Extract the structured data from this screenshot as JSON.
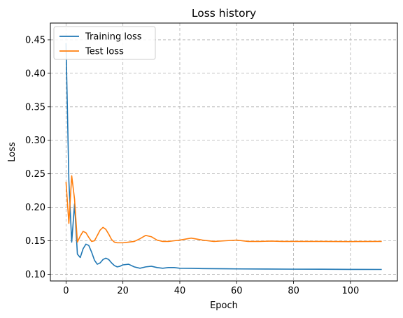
{
  "chart_data": {
    "type": "line",
    "title": "Loss history",
    "xlabel": "Epoch",
    "ylabel": "Loss",
    "xlim": [
      -5.5,
      116.5
    ],
    "ylim": [
      0.09,
      0.475
    ],
    "xticks": [
      0,
      20,
      40,
      60,
      80,
      100
    ],
    "yticks": [
      0.1,
      0.15,
      0.2,
      0.25,
      0.3,
      0.35,
      0.4,
      0.45
    ],
    "grid": true,
    "legend_position": "top-left",
    "series": [
      {
        "name": "Training loss",
        "color": "#1f77b4",
        "x": [
          0,
          1,
          2,
          3,
          4,
          5,
          6,
          7,
          8,
          9,
          10,
          11,
          12,
          13,
          14,
          15,
          16,
          17,
          18,
          19,
          20,
          22,
          24,
          26,
          28,
          30,
          32,
          34,
          36,
          38,
          40,
          44,
          48,
          52,
          56,
          60,
          70,
          80,
          90,
          100,
          111
        ],
        "y": [
          0.445,
          0.24,
          0.148,
          0.205,
          0.13,
          0.125,
          0.138,
          0.145,
          0.143,
          0.133,
          0.121,
          0.115,
          0.117,
          0.122,
          0.124,
          0.122,
          0.117,
          0.113,
          0.111,
          0.112,
          0.114,
          0.115,
          0.111,
          0.109,
          0.111,
          0.112,
          0.11,
          0.109,
          0.11,
          0.11,
          0.109,
          0.1088,
          0.1085,
          0.1083,
          0.1082,
          0.108,
          0.1078,
          0.1076,
          0.1075,
          0.1073,
          0.1072
        ]
      },
      {
        "name": "Test loss",
        "color": "#ff7f0e",
        "x": [
          0,
          1,
          2,
          3,
          4,
          5,
          6,
          7,
          8,
          9,
          10,
          11,
          12,
          13,
          14,
          15,
          16,
          17,
          18,
          19,
          20,
          22,
          24,
          26,
          28,
          30,
          32,
          34,
          36,
          38,
          40,
          44,
          48,
          52,
          56,
          60,
          64,
          68,
          72,
          76,
          80,
          90,
          100,
          111
        ],
        "y": [
          0.238,
          0.176,
          0.247,
          0.212,
          0.148,
          0.157,
          0.164,
          0.162,
          0.155,
          0.149,
          0.15,
          0.158,
          0.166,
          0.17,
          0.167,
          0.16,
          0.152,
          0.148,
          0.147,
          0.147,
          0.147,
          0.148,
          0.149,
          0.153,
          0.158,
          0.156,
          0.151,
          0.149,
          0.149,
          0.15,
          0.151,
          0.154,
          0.151,
          0.149,
          0.15,
          0.151,
          0.149,
          0.149,
          0.1495,
          0.149,
          0.149,
          0.149,
          0.1488,
          0.149
        ]
      }
    ]
  }
}
